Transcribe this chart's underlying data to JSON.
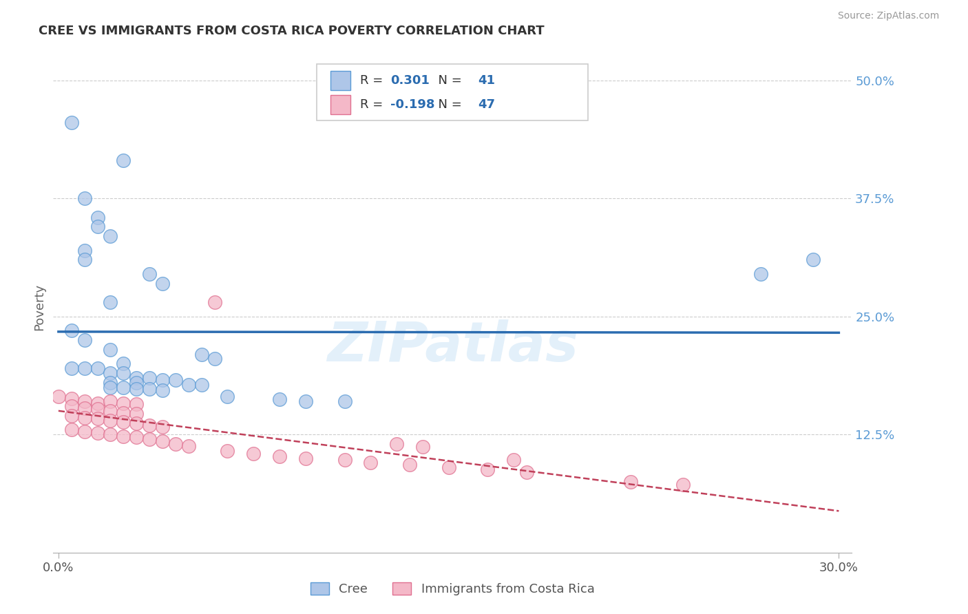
{
  "title": "CREE VS IMMIGRANTS FROM COSTA RICA POVERTY CORRELATION CHART",
  "source": "Source: ZipAtlas.com",
  "xlabel_cree": "Cree",
  "xlabel_immigrants": "Immigrants from Costa Rica",
  "ylabel": "Poverty",
  "xlim": [
    -0.002,
    0.305
  ],
  "ylim": [
    0.0,
    0.52
  ],
  "xticks": [
    0.0,
    0.3
  ],
  "xtick_labels": [
    "0.0%",
    "30.0%"
  ],
  "yticks": [
    0.125,
    0.25,
    0.375,
    0.5
  ],
  "ytick_labels": [
    "12.5%",
    "25.0%",
    "37.5%",
    "50.0%"
  ],
  "cree_R": 0.301,
  "cree_N": 41,
  "immigrants_R": -0.198,
  "immigrants_N": 47,
  "watermark": "ZIPatlas",
  "blue_fill": "#aec6e8",
  "blue_edge": "#5b9bd5",
  "blue_line": "#2b6cb0",
  "pink_fill": "#f4b8c8",
  "pink_edge": "#e07090",
  "pink_line": "#c0405a",
  "legend_R_color": "#2b6cb0",
  "legend_text_color": "#333333",
  "tick_color": "#5b9bd5",
  "blue_scatter": [
    [
      0.005,
      0.455
    ],
    [
      0.025,
      0.415
    ],
    [
      0.01,
      0.375
    ],
    [
      0.015,
      0.355
    ],
    [
      0.015,
      0.345
    ],
    [
      0.02,
      0.335
    ],
    [
      0.01,
      0.32
    ],
    [
      0.01,
      0.31
    ],
    [
      0.035,
      0.295
    ],
    [
      0.04,
      0.285
    ],
    [
      0.02,
      0.265
    ],
    [
      0.005,
      0.235
    ],
    [
      0.01,
      0.225
    ],
    [
      0.02,
      0.215
    ],
    [
      0.055,
      0.21
    ],
    [
      0.06,
      0.205
    ],
    [
      0.025,
      0.2
    ],
    [
      0.005,
      0.195
    ],
    [
      0.01,
      0.195
    ],
    [
      0.015,
      0.195
    ],
    [
      0.02,
      0.19
    ],
    [
      0.025,
      0.19
    ],
    [
      0.03,
      0.185
    ],
    [
      0.035,
      0.185
    ],
    [
      0.04,
      0.183
    ],
    [
      0.045,
      0.183
    ],
    [
      0.02,
      0.18
    ],
    [
      0.03,
      0.18
    ],
    [
      0.05,
      0.178
    ],
    [
      0.055,
      0.178
    ],
    [
      0.02,
      0.175
    ],
    [
      0.025,
      0.175
    ],
    [
      0.03,
      0.173
    ],
    [
      0.035,
      0.173
    ],
    [
      0.04,
      0.172
    ],
    [
      0.065,
      0.165
    ],
    [
      0.085,
      0.162
    ],
    [
      0.095,
      0.16
    ],
    [
      0.11,
      0.16
    ],
    [
      0.27,
      0.295
    ],
    [
      0.29,
      0.31
    ]
  ],
  "pink_scatter": [
    [
      0.0,
      0.165
    ],
    [
      0.005,
      0.163
    ],
    [
      0.01,
      0.16
    ],
    [
      0.015,
      0.158
    ],
    [
      0.02,
      0.16
    ],
    [
      0.025,
      0.158
    ],
    [
      0.03,
      0.157
    ],
    [
      0.005,
      0.155
    ],
    [
      0.01,
      0.153
    ],
    [
      0.015,
      0.152
    ],
    [
      0.02,
      0.15
    ],
    [
      0.025,
      0.148
    ],
    [
      0.03,
      0.147
    ],
    [
      0.005,
      0.145
    ],
    [
      0.01,
      0.143
    ],
    [
      0.015,
      0.142
    ],
    [
      0.02,
      0.14
    ],
    [
      0.025,
      0.138
    ],
    [
      0.03,
      0.137
    ],
    [
      0.035,
      0.135
    ],
    [
      0.04,
      0.133
    ],
    [
      0.005,
      0.13
    ],
    [
      0.01,
      0.128
    ],
    [
      0.015,
      0.127
    ],
    [
      0.02,
      0.125
    ],
    [
      0.025,
      0.123
    ],
    [
      0.03,
      0.122
    ],
    [
      0.035,
      0.12
    ],
    [
      0.04,
      0.118
    ],
    [
      0.045,
      0.115
    ],
    [
      0.05,
      0.113
    ],
    [
      0.06,
      0.265
    ],
    [
      0.065,
      0.108
    ],
    [
      0.075,
      0.105
    ],
    [
      0.085,
      0.102
    ],
    [
      0.095,
      0.1
    ],
    [
      0.11,
      0.098
    ],
    [
      0.12,
      0.095
    ],
    [
      0.135,
      0.093
    ],
    [
      0.15,
      0.09
    ],
    [
      0.165,
      0.088
    ],
    [
      0.18,
      0.085
    ],
    [
      0.175,
      0.098
    ],
    [
      0.13,
      0.115
    ],
    [
      0.14,
      0.112
    ],
    [
      0.22,
      0.075
    ],
    [
      0.24,
      0.072
    ]
  ]
}
